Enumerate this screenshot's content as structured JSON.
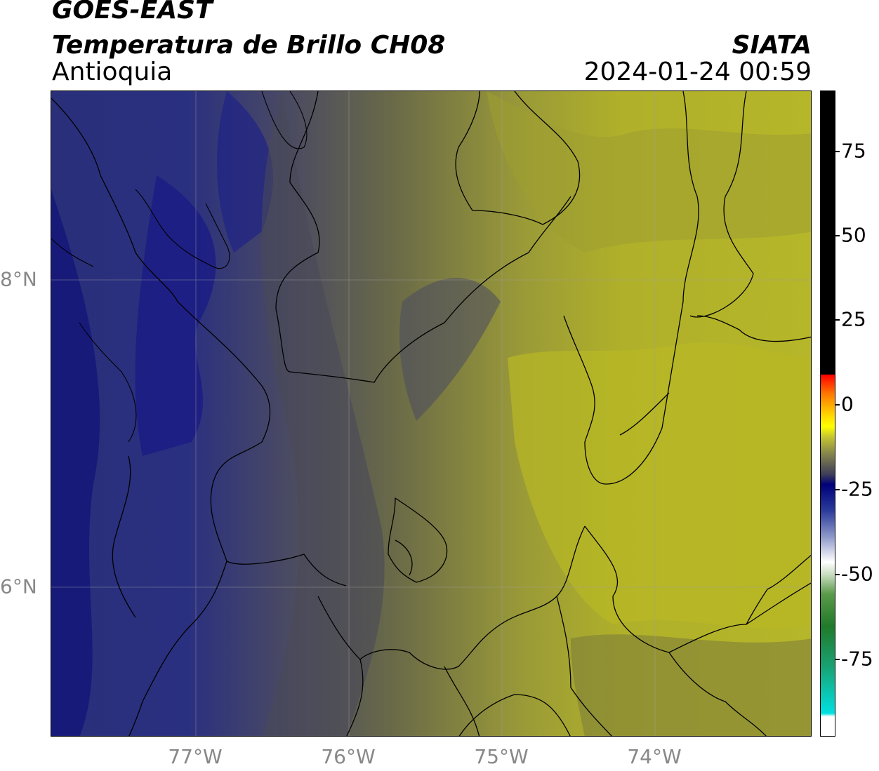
{
  "header": {
    "title1": "GOES-EAST",
    "title2": "Temperatura de Brillo CH08",
    "subtitle": "Antioquia",
    "brand": "SIATA",
    "timestamp": "2024-01-24 00:59"
  },
  "map": {
    "x_ticks": [
      "77°W",
      "76°W",
      "75°W",
      "74°W"
    ],
    "y_ticks": [
      "8°N",
      "6°N"
    ]
  },
  "colorbar": {
    "labels": [
      "75",
      "50",
      "25",
      "0",
      "-25",
      "-50",
      "-75"
    ],
    "colors": {
      "hot": "#000000",
      "warm_red": "#ff0000",
      "yellow": "#ffff00",
      "olive": "#8a8a4a",
      "navy": "#00007a",
      "white": "#ffffff",
      "green": "#207a2a",
      "cyan": "#00e0e0"
    }
  }
}
